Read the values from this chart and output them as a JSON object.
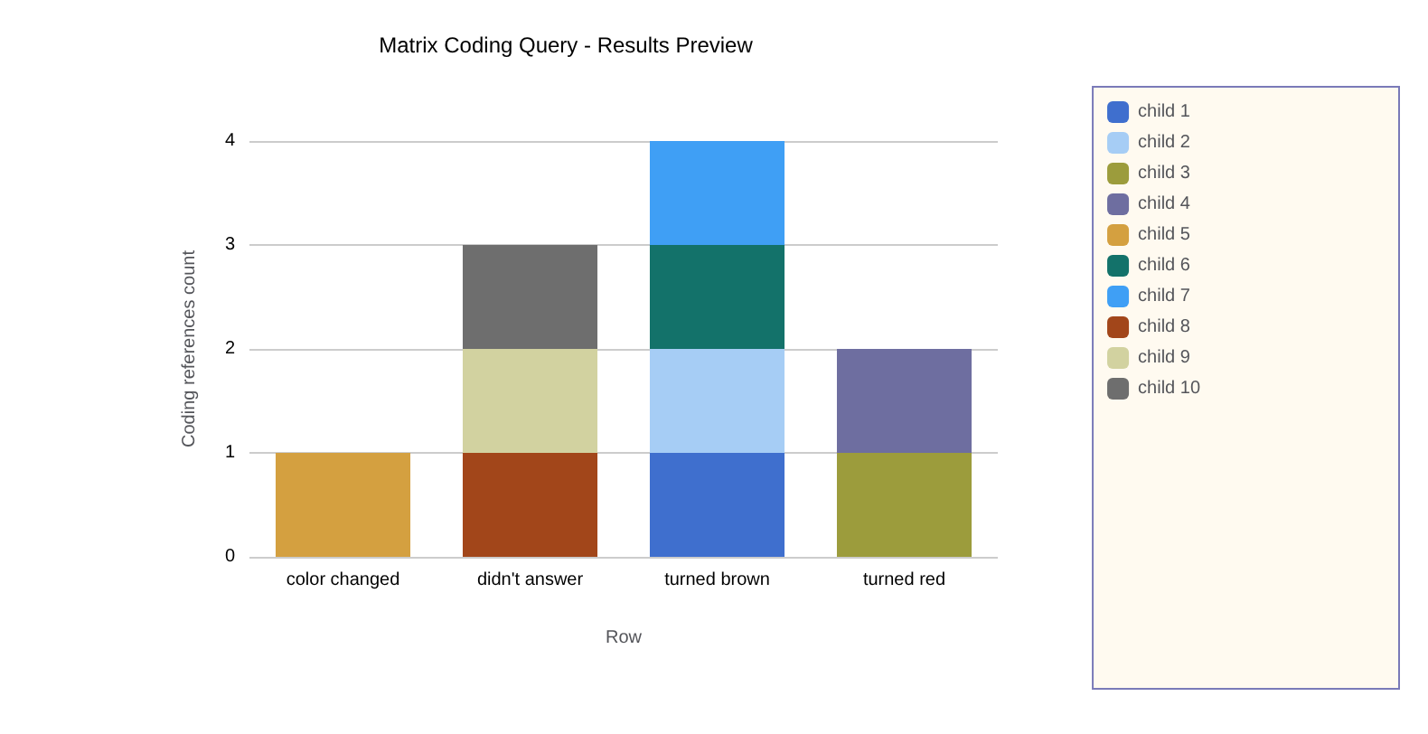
{
  "chart_data": {
    "type": "bar",
    "title": "Matrix Coding Query - Results Preview",
    "xlabel": "Row",
    "ylabel": "Coding references count",
    "categories": [
      "color changed",
      "didn't answer",
      "turned brown",
      "turned red"
    ],
    "stacked": true,
    "ylim": [
      0,
      4
    ],
    "yticks": [
      0,
      1,
      2,
      3,
      4
    ],
    "grid": "y",
    "legend": "right",
    "series": [
      {
        "name": "child 1",
        "color": "#3f6fce",
        "values": [
          null,
          null,
          1,
          null
        ]
      },
      {
        "name": "child 2",
        "color": "#a6cdf5",
        "values": [
          null,
          null,
          1,
          null
        ]
      },
      {
        "name": "child 3",
        "color": "#9c9c3c",
        "values": [
          null,
          null,
          null,
          1
        ]
      },
      {
        "name": "child 4",
        "color": "#6e6ea0",
        "values": [
          null,
          null,
          null,
          1
        ]
      },
      {
        "name": "child 5",
        "color": "#d4a040",
        "values": [
          1,
          null,
          null,
          null
        ]
      },
      {
        "name": "child 6",
        "color": "#13726a",
        "values": [
          null,
          null,
          1,
          null
        ]
      },
      {
        "name": "child 7",
        "color": "#3f9ff5",
        "values": [
          null,
          null,
          1,
          null
        ]
      },
      {
        "name": "child 8",
        "color": "#a2461a",
        "values": [
          null,
          1,
          null,
          null
        ]
      },
      {
        "name": "child 9",
        "color": "#d2d2a0",
        "values": [
          null,
          1,
          null,
          null
        ]
      },
      {
        "name": "child 10",
        "color": "#6e6e6e",
        "values": [
          null,
          1,
          null,
          null
        ]
      }
    ]
  }
}
